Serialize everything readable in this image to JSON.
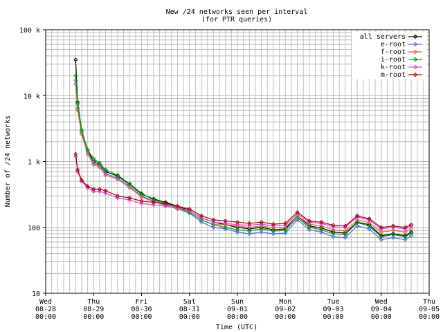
{
  "chart_data": {
    "type": "line",
    "title": "New /24 networks seen per interval",
    "subtitle": "(for PTR queries)",
    "xlabel": "Time (UTC)",
    "ylabel": "Number of /24 networks",
    "yscale": "log",
    "ylim": [
      10,
      100000
    ],
    "xlim": [
      "2024-08-28 00:00",
      "2024-09-05 00:00"
    ],
    "grid": true,
    "legend_position": "top-right",
    "y_ticks": [
      {
        "value": 10,
        "label": "10"
      },
      {
        "value": 100,
        "label": "100"
      },
      {
        "value": 1000,
        "label": "1 k"
      },
      {
        "value": 10000,
        "label": "10 k"
      },
      {
        "value": 100000,
        "label": "100 k"
      }
    ],
    "x_ticks": [
      {
        "day": "Wed",
        "date": "08-28",
        "time": "00:00",
        "x": "2024-08-28 00:00"
      },
      {
        "day": "Thu",
        "date": "08-29",
        "time": "00:00",
        "x": "2024-08-29 00:00"
      },
      {
        "day": "Fri",
        "date": "08-30",
        "time": "00:00",
        "x": "2024-08-30 00:00"
      },
      {
        "day": "Sat",
        "date": "08-31",
        "time": "00:00",
        "x": "2024-08-31 00:00"
      },
      {
        "day": "Sun",
        "date": "09-01",
        "time": "00:00",
        "x": "2024-09-01 00:00"
      },
      {
        "day": "Mon",
        "date": "09-02",
        "time": "00:00",
        "x": "2024-09-02 00:00"
      },
      {
        "day": "Tue",
        "date": "09-03",
        "time": "00:00",
        "x": "2024-09-03 00:00"
      },
      {
        "day": "Wed",
        "date": "09-04",
        "time": "00:00",
        "x": "2024-09-04 00:00"
      },
      {
        "day": "Thu",
        "date": "09-05",
        "time": "00:00",
        "x": "2024-09-05 00:00"
      }
    ],
    "x": [
      "2024-08-28 15:00",
      "2024-08-28 16:00",
      "2024-08-28 18:00",
      "2024-08-28 21:00",
      "2024-08-29 00:00",
      "2024-08-29 03:00",
      "2024-08-29 06:00",
      "2024-08-29 12:00",
      "2024-08-29 18:00",
      "2024-08-30 00:00",
      "2024-08-30 06:00",
      "2024-08-30 12:00",
      "2024-08-30 18:00",
      "2024-08-31 00:00",
      "2024-08-31 06:00",
      "2024-08-31 12:00",
      "2024-08-31 18:00",
      "2024-09-01 00:00",
      "2024-09-01 06:00",
      "2024-09-01 12:00",
      "2024-09-01 18:00",
      "2024-09-02 00:00",
      "2024-09-02 06:00",
      "2024-09-02 12:00",
      "2024-09-02 18:00",
      "2024-09-03 00:00",
      "2024-09-03 06:00",
      "2024-09-03 12:00",
      "2024-09-03 18:00",
      "2024-09-04 00:00",
      "2024-09-04 06:00",
      "2024-09-04 12:00",
      "2024-09-04 15:00"
    ],
    "series": [
      {
        "name": "all servers",
        "color": "#000000",
        "values": [
          35000,
          8000,
          3000,
          1500,
          1000,
          900,
          700,
          600,
          450,
          320,
          270,
          240,
          210,
          180,
          140,
          120,
          110,
          100,
          95,
          100,
          92,
          95,
          150,
          105,
          98,
          85,
          82,
          120,
          110,
          75,
          80,
          75,
          85
        ]
      },
      {
        "name": "e-root",
        "color": "#4c6cf0",
        "values": [
          17000,
          6500,
          2800,
          1400,
          950,
          850,
          650,
          560,
          420,
          300,
          250,
          220,
          190,
          165,
          120,
          100,
          95,
          85,
          80,
          85,
          80,
          82,
          130,
          92,
          85,
          72,
          70,
          105,
          95,
          65,
          70,
          65,
          75
        ]
      },
      {
        "name": "f-root",
        "color": "#e0604c",
        "values": [
          15000,
          6000,
          2600,
          1300,
          900,
          820,
          620,
          540,
          400,
          290,
          245,
          215,
          190,
          170,
          130,
          110,
          110,
          105,
          100,
          105,
          98,
          100,
          150,
          112,
          105,
          92,
          88,
          130,
          118,
          85,
          90,
          85,
          95
        ]
      },
      {
        "name": "i-root",
        "color": "#00a000",
        "values": [
          20000,
          7500,
          3000,
          1500,
          1100,
          950,
          750,
          620,
          460,
          330,
          260,
          230,
          200,
          170,
          130,
          110,
          100,
          92,
          88,
          95,
          88,
          90,
          140,
          100,
          92,
          80,
          78,
          118,
          105,
          72,
          78,
          72,
          82
        ]
      },
      {
        "name": "k-root",
        "color": "#e040e0",
        "values": [
          1200,
          700,
          500,
          400,
          350,
          350,
          330,
          280,
          260,
          230,
          220,
          210,
          200,
          180,
          140,
          120,
          115,
          110,
          108,
          112,
          105,
          108,
          160,
          120,
          115,
          102,
          100,
          145,
          130,
          95,
          100,
          95,
          105
        ]
      },
      {
        "name": "m-root",
        "color": "#a80000",
        "values": [
          1300,
          750,
          520,
          420,
          380,
          380,
          360,
          300,
          280,
          250,
          240,
          230,
          210,
          190,
          150,
          130,
          125,
          120,
          115,
          120,
          112,
          115,
          170,
          125,
          120,
          108,
          105,
          150,
          135,
          100,
          105,
          100,
          110
        ]
      }
    ]
  }
}
